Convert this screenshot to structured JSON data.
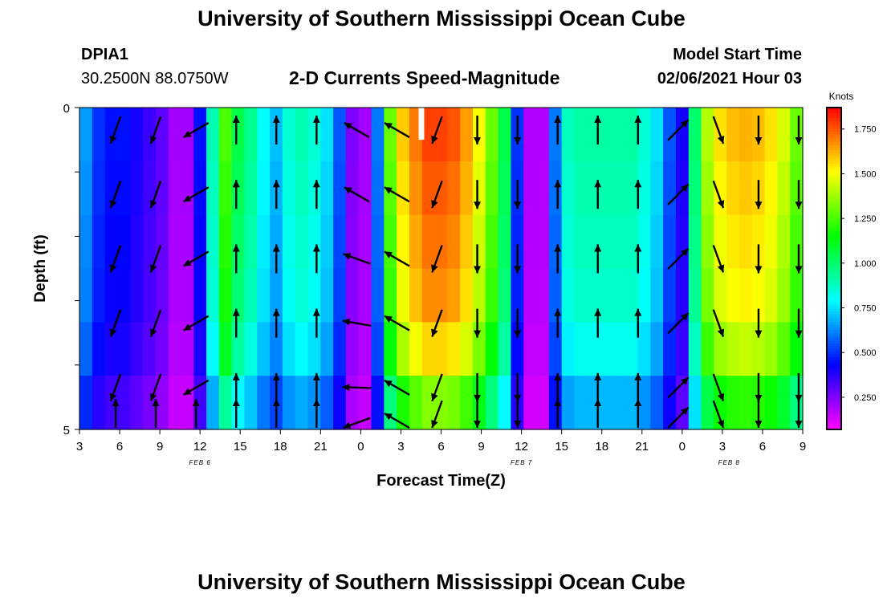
{
  "header": {
    "title": "University of Southern Mississippi Ocean Cube",
    "station_id": "DPIA1",
    "station_coords": "30.2500N 88.0750W",
    "plot_title": "2-D Currents Speed-Magnitude",
    "model_start_label": "Model Start Time",
    "model_start_value": "02/06/2021 Hour 03"
  },
  "footer": {
    "title": "University of Southern Mississippi Ocean Cube"
  },
  "chart_data": {
    "type": "heatmap",
    "title": "2-D Currents Speed-Magnitude",
    "xlabel": "Forecast Time(Z)",
    "ylabel": "Depth (ft)",
    "colorbar_label": "Knots",
    "colorbar_ticks": [
      "1.750",
      "1.500",
      "1.250",
      "1.000",
      "0.750",
      "0.500",
      "0.250"
    ],
    "colorbar_tick_values": [
      1.75,
      1.5,
      1.25,
      1.0,
      0.75,
      0.5,
      0.25
    ],
    "colorbar_range": [
      0.07,
      1.87
    ],
    "xlim": [
      0,
      54
    ],
    "ylim": [
      0,
      5
    ],
    "x_tick_values": [
      0,
      3,
      6,
      9,
      12,
      15,
      18,
      21,
      24,
      27,
      30,
      33,
      36,
      39,
      42,
      45,
      48,
      51,
      54
    ],
    "x_tick_labels": [
      "3",
      "6",
      "9",
      "12",
      "15",
      "18",
      "21",
      "0",
      "3",
      "6",
      "9",
      "12",
      "15",
      "18",
      "21",
      "0",
      "3",
      "6",
      "9"
    ],
    "y_tick_labels": [
      "0",
      "5"
    ],
    "date_labels": [
      {
        "text": "FEB 6",
        "x": 9
      },
      {
        "text": "FEB 7",
        "x": 33
      },
      {
        "text": "FEB 8",
        "x": 48.5
      }
    ],
    "time_speed_profile": [
      0.65,
      0.5,
      0.45,
      0.45,
      0.4,
      0.35,
      0.3,
      0.2,
      0.2,
      0.45,
      0.9,
      1.25,
      1.05,
      0.95,
      0.8,
      0.7,
      0.85,
      0.9,
      0.85,
      0.75,
      0.55,
      0.25,
      0.2,
      0.6,
      1.3,
      1.58,
      1.7,
      1.78,
      1.78,
      1.75,
      1.65,
      1.5,
      1.3,
      1.05,
      0.5,
      0.18,
      0.18,
      0.6,
      0.88,
      0.92,
      0.92,
      0.92,
      0.92,
      0.92,
      0.85,
      0.75,
      0.55,
      0.4,
      1.0,
      1.4,
      1.55,
      1.6,
      1.62,
      1.6,
      1.55,
      1.45,
      1.3
    ],
    "depth_factors": [
      1.0,
      0.98,
      0.96,
      0.94,
      0.88,
      0.75
    ],
    "arrow_times": [
      3,
      6,
      9,
      12,
      15,
      18,
      21,
      24,
      27,
      30,
      33,
      36,
      39,
      42,
      45,
      48,
      51,
      54
    ],
    "arrow_depths": [
      0.2,
      1.2,
      2.2,
      3.2,
      4.2,
      5.0
    ],
    "arrow_directions_deg": [
      [
        200,
        200,
        240,
        0,
        0,
        0,
        300,
        300,
        200,
        180,
        180,
        0,
        0,
        0,
        45,
        160,
        180,
        180
      ],
      [
        200,
        200,
        240,
        0,
        0,
        0,
        300,
        300,
        200,
        180,
        180,
        0,
        0,
        0,
        45,
        160,
        180,
        180
      ],
      [
        200,
        200,
        240,
        0,
        0,
        0,
        290,
        300,
        200,
        180,
        180,
        0,
        0,
        0,
        45,
        160,
        180,
        180
      ],
      [
        200,
        200,
        240,
        0,
        0,
        0,
        280,
        300,
        200,
        180,
        180,
        0,
        0,
        0,
        45,
        160,
        180,
        180
      ],
      [
        200,
        200,
        240,
        0,
        0,
        0,
        272,
        300,
        200,
        180,
        180,
        0,
        0,
        0,
        45,
        160,
        180,
        180
      ],
      [
        0,
        0,
        0,
        0,
        0,
        0,
        250,
        300,
        200,
        180,
        180,
        0,
        0,
        0,
        45,
        160,
        180,
        180
      ]
    ],
    "missing_marker": {
      "x": 25.5,
      "depth_from": 0,
      "depth_to": 0.5
    }
  }
}
